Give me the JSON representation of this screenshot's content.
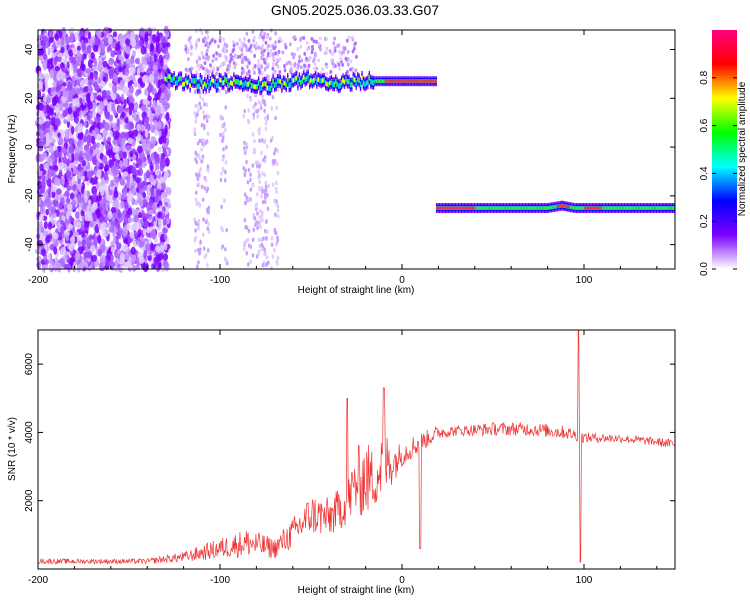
{
  "title": "GN05.2025.036.03.33.G07",
  "chart_data": [
    {
      "type": "heatmap",
      "xlabel": "Height of straight line (km)",
      "ylabel": "Frequency (Hz)",
      "xlim": [
        -200,
        150
      ],
      "ylim": [
        -50,
        48
      ],
      "xticks": [
        -200,
        -100,
        0,
        100
      ],
      "xtick_labels": [
        "-200",
        "-100",
        "0",
        "100"
      ],
      "yticks": [
        -40,
        -20,
        0,
        20,
        40
      ],
      "ytick_labels": [
        "-40",
        "-20",
        "0",
        "20",
        "40"
      ],
      "colorbar": {
        "label": "Normalized spectral amplitude",
        "range": [
          0,
          1
        ],
        "ticks": [
          0,
          0.2,
          0.4,
          0.6,
          0.8
        ],
        "tick_labels": [
          "0.0",
          "0.2",
          "0.4",
          "0.6",
          "0.8"
        ],
        "colors": [
          "#ffffff",
          "#7b00ff",
          "#0000ff",
          "#00ffff",
          "#00ff00",
          "#ffff00",
          "#ff0000",
          "#ff0080"
        ]
      },
      "ridges": [
        {
          "x_range": [
            -130,
            19
          ],
          "center_freq": [
            [
              -130,
              28
            ],
            [
              -110,
              26
            ],
            [
              -90,
              27
            ],
            [
              -75,
              25
            ],
            [
              -60,
              27
            ],
            [
              -45,
              28
            ],
            [
              -35,
              26
            ],
            [
              -25,
              27
            ],
            [
              -15,
              27
            ],
            [
              0,
              27
            ],
            [
              19,
              27
            ]
          ]
        },
        {
          "x_range": [
            19,
            150
          ],
          "center_freq": [
            [
              19,
              -25
            ],
            [
              50,
              -25
            ],
            [
              80,
              -25
            ],
            [
              88,
              -24
            ],
            [
              95,
              -25
            ],
            [
              120,
              -25
            ],
            [
              150,
              -25
            ]
          ]
        }
      ]
    },
    {
      "type": "line",
      "xlabel": "Height of straight line (km)",
      "ylabel": "SNR (10 * v/v)",
      "xlim": [
        -200,
        150
      ],
      "ylim": [
        0,
        7000
      ],
      "xticks": [
        -200,
        -100,
        0,
        100
      ],
      "xtick_labels": [
        "-200",
        "-100",
        "0",
        "100"
      ],
      "yticks": [
        2000,
        4000,
        6000
      ],
      "ytick_labels": [
        "2000",
        "4000",
        "6000"
      ],
      "series": [
        {
          "color": "#ee3333",
          "envelope": [
            [
              -200,
              150,
              300
            ],
            [
              -170,
              150,
              300
            ],
            [
              -140,
              150,
              300
            ],
            [
              -120,
              200,
              500
            ],
            [
              -100,
              300,
              900
            ],
            [
              -85,
              350,
              1200
            ],
            [
              -70,
              300,
              900
            ],
            [
              -60,
              600,
              1500
            ],
            [
              -50,
              1000,
              2200
            ],
            [
              -40,
              900,
              2100
            ],
            [
              -30,
              1300,
              2600
            ],
            [
              -25,
              1500,
              3600
            ],
            [
              -20,
              1500,
              3800
            ],
            [
              -15,
              1800,
              3500
            ],
            [
              -10,
              2000,
              4200
            ],
            [
              -5,
              2500,
              3700
            ],
            [
              0,
              3000,
              3700
            ],
            [
              5,
              3200,
              3900
            ],
            [
              10,
              3400,
              4000
            ],
            [
              20,
              3800,
              4200
            ],
            [
              30,
              3900,
              4200
            ],
            [
              50,
              3900,
              4300
            ],
            [
              70,
              3900,
              4300
            ],
            [
              90,
              3800,
              4200
            ],
            [
              100,
              3700,
              4000
            ],
            [
              120,
              3700,
              3950
            ],
            [
              140,
              3600,
              3850
            ],
            [
              150,
              3500,
              3800
            ]
          ],
          "spikes": [
            [
              -30,
              5000
            ],
            [
              -10,
              5300
            ],
            [
              10,
              600
            ],
            [
              97,
              7000
            ],
            [
              98,
              200
            ]
          ]
        }
      ]
    }
  ]
}
